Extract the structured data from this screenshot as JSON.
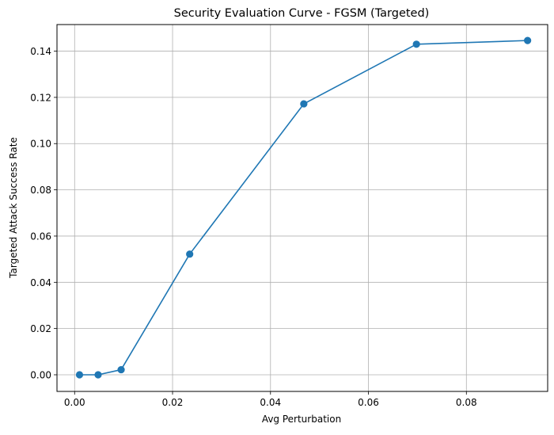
{
  "chart_data": {
    "type": "line",
    "title": "Security Evaluation Curve - FGSM (Targeted)",
    "xlabel": "Avg Perturbation",
    "ylabel": "Targeted Attack Success Rate",
    "xlim": [
      -0.0036,
      0.0966
    ],
    "ylim": [
      -0.0072,
      0.1515
    ],
    "x_ticks": [
      0.0,
      0.02,
      0.04,
      0.06,
      0.08
    ],
    "x_tick_labels": [
      "0.00",
      "0.02",
      "0.04",
      "0.06",
      "0.08"
    ],
    "y_ticks": [
      0.0,
      0.02,
      0.04,
      0.06,
      0.08,
      0.1,
      0.12,
      0.14
    ],
    "y_tick_labels": [
      "0.00",
      "0.02",
      "0.04",
      "0.06",
      "0.08",
      "0.10",
      "0.12",
      "0.14"
    ],
    "grid": true,
    "series": [
      {
        "x": [
          0.001,
          0.0048,
          0.0095,
          0.0235,
          0.0468,
          0.0698,
          0.0925
        ],
        "y": [
          0.0,
          0.0,
          0.0022,
          0.0522,
          0.1172,
          0.143,
          0.1446
        ],
        "color": "#1f77b4",
        "marker": "circle"
      }
    ]
  }
}
